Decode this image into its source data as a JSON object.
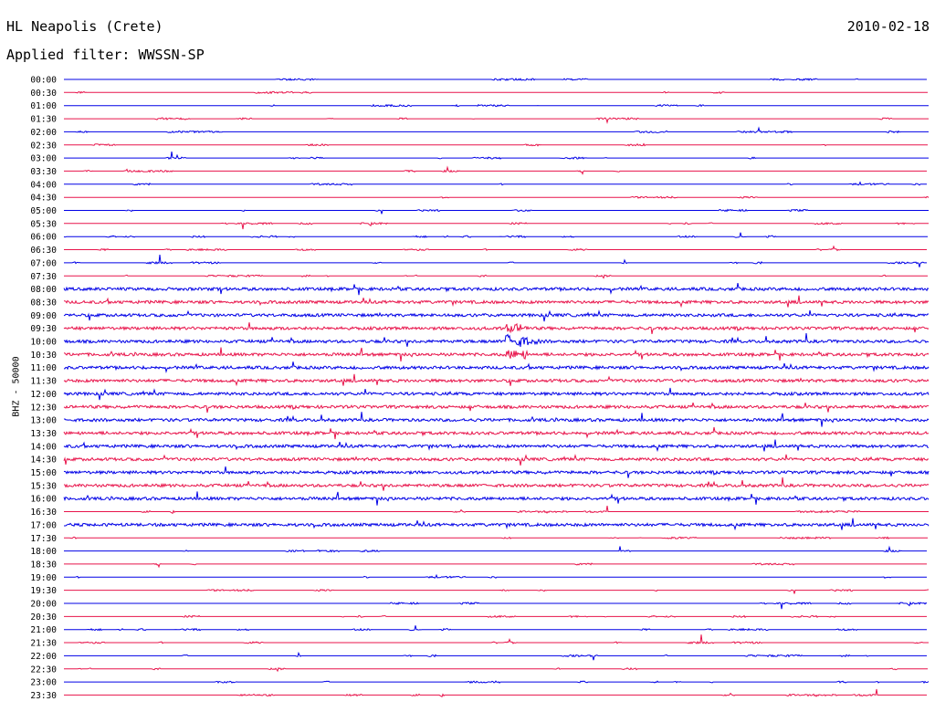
{
  "header": {
    "station": "HL Neapolis (Crete)",
    "date": "2010-02-18",
    "filter": "Applied filter: WWSSN-SP",
    "channel": "BHZ - 50000"
  },
  "colors": {
    "line_a": "#0000e6",
    "line_b": "#e8144b"
  },
  "chart_data": {
    "type": "line",
    "title": "HL Neapolis (Crete)",
    "subtitle": "Applied filter: WWSSN-SP",
    "date": "2010-02-18",
    "ylabel": "BHZ - 50000",
    "rows": [
      "00:00",
      "00:30",
      "01:00",
      "01:30",
      "02:00",
      "02:30",
      "03:00",
      "03:30",
      "04:00",
      "04:30",
      "05:00",
      "05:30",
      "06:00",
      "06:30",
      "07:00",
      "07:30",
      "08:00",
      "08:30",
      "09:00",
      "09:30",
      "10:00",
      "10:30",
      "11:00",
      "11:30",
      "12:00",
      "12:30",
      "13:00",
      "13:30",
      "14:00",
      "14:30",
      "15:00",
      "15:30",
      "16:00",
      "16:30",
      "17:00",
      "17:30",
      "18:00",
      "18:30",
      "19:00",
      "19:30",
      "20:00",
      "20:30",
      "21:00",
      "21:30",
      "22:00",
      "22:30",
      "23:00",
      "23:30"
    ],
    "row_minutes": 30,
    "alternating_colors": [
      "#0000e6",
      "#e8144b"
    ],
    "continuous_noise_rows": [
      "08:00",
      "08:30",
      "09:00",
      "09:30",
      "10:00",
      "10:30",
      "11:00",
      "11:30",
      "12:00",
      "12:30",
      "13:00",
      "13:30",
      "14:00",
      "14:30",
      "15:00",
      "15:30",
      "16:00",
      "17:00"
    ],
    "grid": false
  }
}
